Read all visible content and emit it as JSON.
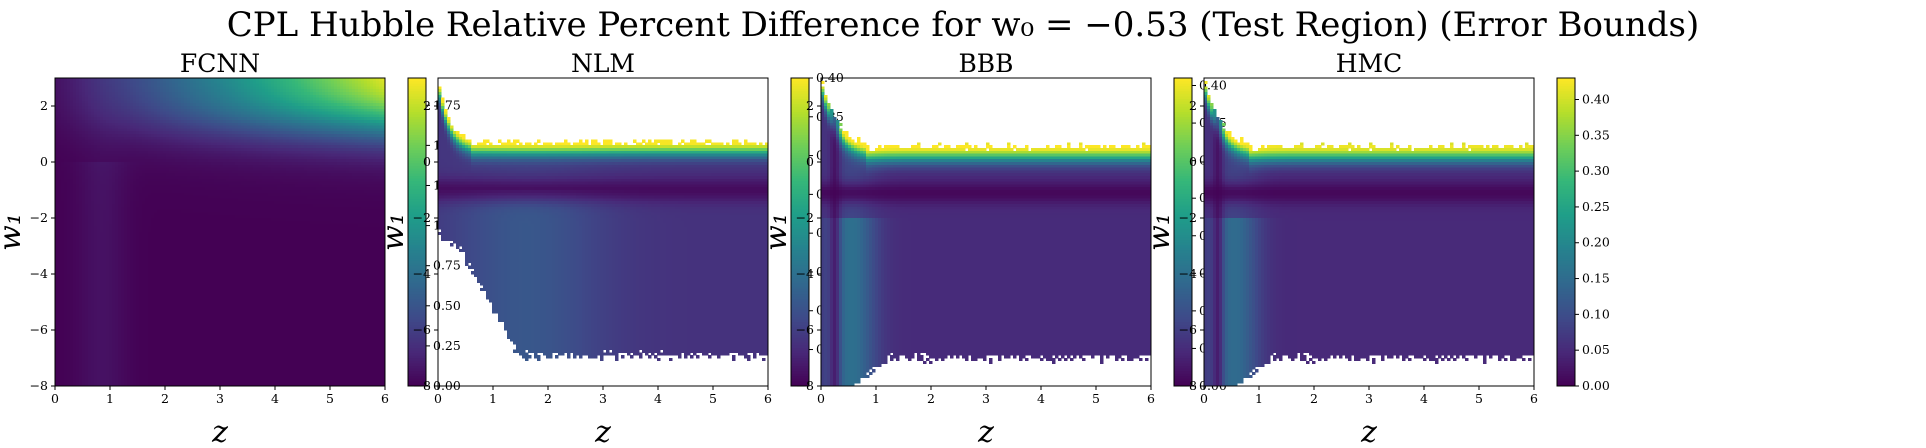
{
  "figure": {
    "title": "CPL Hubble Relative Percent Difference for w₀ = −0.53 (Test Region) (Error Bounds)"
  },
  "chart_data": [
    {
      "type": "heatmap",
      "title": "FCNN",
      "xlabel": "z",
      "ylabel": "w₁",
      "xlim": [
        0,
        6
      ],
      "ylim": [
        -8,
        3
      ],
      "xticks": [
        "0",
        "1",
        "2",
        "3",
        "4",
        "5",
        "6"
      ],
      "yticks": [
        "−8",
        "−6",
        "−4",
        "−2",
        "0",
        "2"
      ],
      "colorbar": {
        "min": 0.0,
        "max": 1.92,
        "ticks": [
          "0.00",
          "0.25",
          "0.50",
          "0.75",
          "1.00",
          "1.25",
          "1.50",
          "1.75"
        ]
      },
      "model": "fcnn",
      "peak": 1.9,
      "valid_region": "full"
    },
    {
      "type": "heatmap",
      "title": "NLM",
      "xlabel": "z",
      "ylabel": "w₁",
      "xlim": [
        0,
        6
      ],
      "ylim": [
        -8,
        3
      ],
      "xticks": [
        "0",
        "1",
        "2",
        "3",
        "4",
        "5",
        "6"
      ],
      "yticks": [
        "−8",
        "−6",
        "−4",
        "−2",
        "0",
        "2"
      ],
      "colorbar": {
        "min": 0.003,
        "max": 0.4,
        "ticks": [
          "0.05",
          "0.10",
          "0.15",
          "0.20",
          "0.25",
          "0.30",
          "0.35",
          "0.40"
        ]
      },
      "model": "nlm",
      "peak": 0.4,
      "valid_region": "w1 between ~-7 and ~0.7; lower-left masked below w1 = -2.5 for z < 1.3"
    },
    {
      "type": "heatmap",
      "title": "BBB",
      "xlabel": "z",
      "ylabel": "w₁",
      "xlim": [
        0,
        6
      ],
      "ylim": [
        -8,
        3
      ],
      "xticks": [
        "0",
        "1",
        "2",
        "3",
        "4",
        "5",
        "6"
      ],
      "yticks": [
        "−8",
        "−6",
        "−4",
        "−2",
        "0",
        "2"
      ],
      "colorbar": {
        "min": 0.0,
        "max": 0.41,
        "ticks": [
          "0.00",
          "0.05",
          "0.10",
          "0.15",
          "0.20",
          "0.25",
          "0.30",
          "0.35",
          "0.40"
        ]
      },
      "model": "bbb",
      "peak": 0.41,
      "valid_region": "w1 between ~-7 and ~0.6; full range near z = 0"
    },
    {
      "type": "heatmap",
      "title": "HMC",
      "xlabel": "z",
      "ylabel": "w₁",
      "xlim": [
        0,
        6
      ],
      "ylim": [
        -8,
        3
      ],
      "xticks": [
        "0",
        "1",
        "2",
        "3",
        "4",
        "5",
        "6"
      ],
      "yticks": [
        "−8",
        "−6",
        "−4",
        "−2",
        "0",
        "2"
      ],
      "colorbar": {
        "min": 0.0,
        "max": 0.43,
        "ticks": [
          "0.00",
          "0.05",
          "0.10",
          "0.15",
          "0.20",
          "0.25",
          "0.30",
          "0.35",
          "0.40"
        ]
      },
      "model": "hmc",
      "peak": 0.42,
      "valid_region": "w1 between ~-7 and ~0.6; full range near z = 0"
    }
  ]
}
